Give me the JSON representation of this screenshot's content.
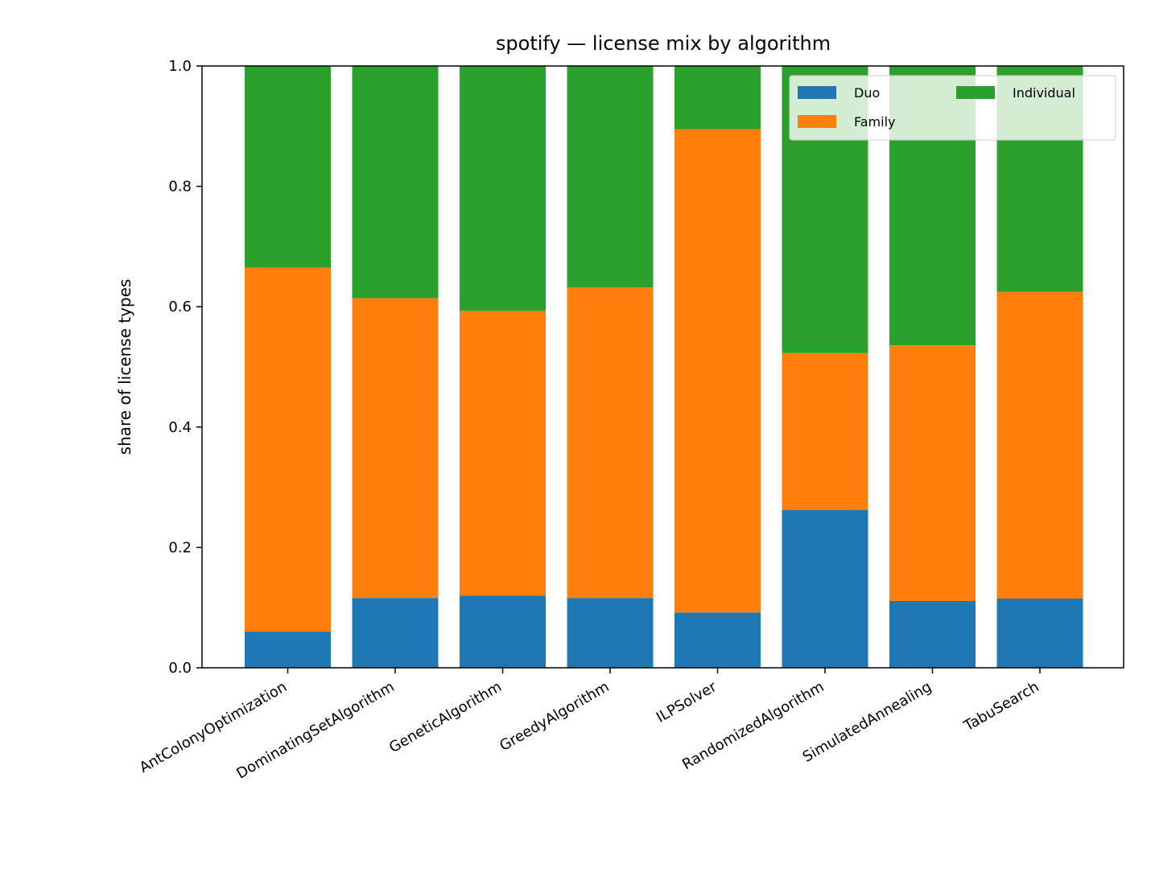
{
  "chart_data": {
    "type": "bar",
    "stacked": true,
    "title": "spotify — license mix by algorithm",
    "xlabel": "",
    "ylabel": "share of license types",
    "ylim": [
      0,
      1.0
    ],
    "yticks": [
      "0.0",
      "0.2",
      "0.4",
      "0.6",
      "0.8",
      "1.0"
    ],
    "categories": [
      "AntColonyOptimization",
      "DominatingSetAlgorithm",
      "GeneticAlgorithm",
      "GreedyAlgorithm",
      "ILPSolver",
      "RandomizedAlgorithm",
      "SimulatedAnnealing",
      "TabuSearch"
    ],
    "series": [
      {
        "name": "Duo",
        "color": "#1f77b4",
        "values": [
          0.06,
          0.116,
          0.12,
          0.116,
          0.092,
          0.262,
          0.111,
          0.115
        ]
      },
      {
        "name": "Family",
        "color": "#ff7f0e",
        "values": [
          0.605,
          0.498,
          0.473,
          0.516,
          0.803,
          0.261,
          0.425,
          0.51
        ]
      },
      {
        "name": "Individual",
        "color": "#2ca02c",
        "values": [
          0.335,
          0.386,
          0.407,
          0.368,
          0.105,
          0.477,
          0.464,
          0.375
        ]
      }
    ],
    "legend": {
      "position": "top-right",
      "columns": 2
    },
    "grid": false
  }
}
